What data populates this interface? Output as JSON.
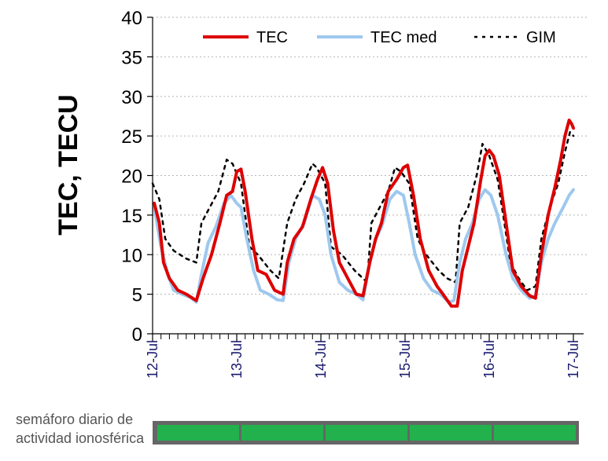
{
  "colors": {
    "tec": "#dd0000",
    "tec_med": "#9ec8ee",
    "gim": "#000000",
    "semaforo_green": "#22b14c",
    "semaforo_frame": "#666666"
  },
  "semaforo": {
    "label_line1": "semáforo diario de",
    "label_line2": "actividad ionosférica",
    "days": [
      {
        "date": "12-Jul",
        "status": "green"
      },
      {
        "date": "13-Jul",
        "status": "green"
      },
      {
        "date": "14-Jul",
        "status": "green"
      },
      {
        "date": "15-Jul",
        "status": "green"
      },
      {
        "date": "16-Jul",
        "status": "green"
      }
    ]
  },
  "chart_data": {
    "type": "line",
    "title": "",
    "xlabel": "",
    "ylabel": "TEC, TECU",
    "ylim": [
      0,
      40
    ],
    "yticks": [
      0,
      5,
      10,
      15,
      20,
      25,
      30,
      35,
      40
    ],
    "x_unit": "days since 12-Jul 00:00 UT",
    "xlim": [
      0,
      5
    ],
    "xticks": [
      {
        "x": 0,
        "label": "12-Jul"
      },
      {
        "x": 1,
        "label": "13-Jul"
      },
      {
        "x": 2,
        "label": "14-Jul"
      },
      {
        "x": 3,
        "label": "15-Jul"
      },
      {
        "x": 4,
        "label": "16-Jul"
      },
      {
        "x": 5,
        "label": "17-Jul"
      }
    ],
    "grid": "horizontal dashed",
    "legend_position": "top",
    "series": [
      {
        "name": "TEC",
        "style": "solid",
        "points": [
          [
            0.02,
            16.5
          ],
          [
            0.08,
            14.0
          ],
          [
            0.13,
            9.0
          ],
          [
            0.2,
            7.0
          ],
          [
            0.3,
            5.5
          ],
          [
            0.4,
            5.0
          ],
          [
            0.52,
            4.2
          ],
          [
            0.6,
            7.0
          ],
          [
            0.7,
            10.0
          ],
          [
            0.8,
            14.0
          ],
          [
            0.88,
            17.5
          ],
          [
            0.95,
            18.0
          ],
          [
            1.0,
            20.5
          ],
          [
            1.05,
            20.8
          ],
          [
            1.1,
            18.0
          ],
          [
            1.18,
            12.0
          ],
          [
            1.25,
            8.0
          ],
          [
            1.35,
            7.5
          ],
          [
            1.45,
            5.5
          ],
          [
            1.55,
            5.0
          ],
          [
            1.6,
            9.0
          ],
          [
            1.68,
            12.0
          ],
          [
            1.78,
            13.5
          ],
          [
            1.88,
            17.0
          ],
          [
            1.96,
            19.5
          ],
          [
            2.02,
            21.0
          ],
          [
            2.08,
            19.0
          ],
          [
            2.15,
            13.0
          ],
          [
            2.22,
            9.0
          ],
          [
            2.32,
            7.0
          ],
          [
            2.42,
            5.0
          ],
          [
            2.5,
            4.8
          ],
          [
            2.58,
            9.0
          ],
          [
            2.65,
            12.0
          ],
          [
            2.72,
            14.0
          ],
          [
            2.8,
            18.0
          ],
          [
            2.9,
            19.5
          ],
          [
            2.98,
            21.0
          ],
          [
            3.03,
            21.3
          ],
          [
            3.1,
            17.5
          ],
          [
            3.18,
            12.0
          ],
          [
            3.28,
            8.0
          ],
          [
            3.38,
            6.0
          ],
          [
            3.45,
            5.0
          ],
          [
            3.55,
            3.5
          ],
          [
            3.62,
            3.5
          ],
          [
            3.68,
            8.0
          ],
          [
            3.75,
            11.0
          ],
          [
            3.82,
            14.0
          ],
          [
            3.9,
            19.5
          ],
          [
            3.95,
            22.5
          ],
          [
            4.0,
            23.2
          ],
          [
            4.05,
            22.5
          ],
          [
            4.12,
            20.0
          ],
          [
            4.2,
            14.0
          ],
          [
            4.28,
            8.0
          ],
          [
            4.38,
            6.0
          ],
          [
            4.48,
            4.8
          ],
          [
            4.55,
            4.5
          ],
          [
            4.62,
            10.0
          ],
          [
            4.7,
            15.0
          ],
          [
            4.78,
            18.5
          ],
          [
            4.85,
            22.0
          ],
          [
            4.9,
            25.0
          ],
          [
            4.95,
            27.0
          ],
          [
            4.98,
            26.5
          ],
          [
            5.0,
            26.0
          ]
        ]
      },
      {
        "name": "TEC med",
        "style": "solid",
        "points": [
          [
            0.02,
            16.0
          ],
          [
            0.1,
            11.0
          ],
          [
            0.18,
            7.5
          ],
          [
            0.25,
            5.5
          ],
          [
            0.35,
            5.0
          ],
          [
            0.45,
            4.6
          ],
          [
            0.52,
            4.0
          ],
          [
            0.58,
            7.5
          ],
          [
            0.66,
            11.5
          ],
          [
            0.75,
            13.5
          ],
          [
            0.85,
            16.5
          ],
          [
            0.93,
            17.5
          ],
          [
            1.0,
            16.5
          ],
          [
            1.05,
            16.0
          ],
          [
            1.12,
            12.0
          ],
          [
            1.2,
            8.0
          ],
          [
            1.28,
            5.5
          ],
          [
            1.38,
            5.0
          ],
          [
            1.48,
            4.3
          ],
          [
            1.55,
            4.2
          ],
          [
            1.62,
            9.0
          ],
          [
            1.7,
            12.0
          ],
          [
            1.8,
            14.0
          ],
          [
            1.9,
            17.5
          ],
          [
            1.98,
            17.0
          ],
          [
            2.05,
            15.0
          ],
          [
            2.12,
            10.0
          ],
          [
            2.22,
            6.5
          ],
          [
            2.32,
            5.5
          ],
          [
            2.42,
            5.0
          ],
          [
            2.5,
            4.3
          ],
          [
            2.58,
            9.0
          ],
          [
            2.65,
            12.0
          ],
          [
            2.72,
            13.5
          ],
          [
            2.82,
            17.0
          ],
          [
            2.9,
            18.0
          ],
          [
            2.98,
            17.5
          ],
          [
            3.05,
            14.0
          ],
          [
            3.12,
            10.0
          ],
          [
            3.22,
            7.0
          ],
          [
            3.32,
            5.5
          ],
          [
            3.42,
            5.0
          ],
          [
            3.52,
            4.0
          ],
          [
            3.58,
            4.2
          ],
          [
            3.65,
            9.0
          ],
          [
            3.72,
            12.0
          ],
          [
            3.8,
            14.0
          ],
          [
            3.88,
            17.0
          ],
          [
            3.95,
            18.2
          ],
          [
            4.02,
            17.5
          ],
          [
            4.1,
            15.0
          ],
          [
            4.2,
            10.0
          ],
          [
            4.28,
            7.0
          ],
          [
            4.38,
            5.5
          ],
          [
            4.48,
            4.5
          ],
          [
            4.55,
            4.8
          ],
          [
            4.62,
            9.0
          ],
          [
            4.7,
            12.0
          ],
          [
            4.78,
            14.0
          ],
          [
            4.88,
            16.0
          ],
          [
            4.95,
            17.5
          ],
          [
            5.0,
            18.2
          ]
        ]
      },
      {
        "name": "GIM",
        "style": "dotted",
        "points": [
          [
            0.0,
            19.0
          ],
          [
            0.08,
            17.0
          ],
          [
            0.15,
            12.0
          ],
          [
            0.25,
            10.5
          ],
          [
            0.4,
            9.5
          ],
          [
            0.52,
            9.0
          ],
          [
            0.58,
            14.0
          ],
          [
            0.68,
            16.0
          ],
          [
            0.78,
            18.0
          ],
          [
            0.88,
            22.0
          ],
          [
            0.95,
            21.5
          ],
          [
            1.05,
            19.0
          ],
          [
            1.15,
            11.0
          ],
          [
            1.25,
            10.0
          ],
          [
            1.4,
            8.0
          ],
          [
            1.5,
            7.0
          ],
          [
            1.6,
            14.0
          ],
          [
            1.7,
            17.0
          ],
          [
            1.8,
            19.0
          ],
          [
            1.9,
            21.5
          ],
          [
            1.95,
            21.0
          ],
          [
            2.05,
            19.0
          ],
          [
            2.12,
            11.0
          ],
          [
            2.25,
            10.0
          ],
          [
            2.4,
            8.0
          ],
          [
            2.55,
            6.5
          ],
          [
            2.6,
            14.0
          ],
          [
            2.7,
            16.0
          ],
          [
            2.8,
            18.0
          ],
          [
            2.88,
            21.0
          ],
          [
            2.95,
            20.5
          ],
          [
            3.05,
            19.0
          ],
          [
            3.15,
            12.0
          ],
          [
            3.25,
            10.0
          ],
          [
            3.4,
            8.0
          ],
          [
            3.5,
            7.0
          ],
          [
            3.6,
            6.5
          ],
          [
            3.65,
            14.0
          ],
          [
            3.75,
            16.0
          ],
          [
            3.85,
            20.0
          ],
          [
            3.92,
            24.0
          ],
          [
            4.0,
            22.5
          ],
          [
            4.1,
            19.5
          ],
          [
            4.18,
            14.0
          ],
          [
            4.25,
            9.0
          ],
          [
            4.35,
            7.0
          ],
          [
            4.45,
            5.5
          ],
          [
            4.55,
            6.0
          ],
          [
            4.62,
            12.0
          ],
          [
            4.72,
            16.0
          ],
          [
            4.82,
            19.0
          ],
          [
            4.9,
            23.0
          ],
          [
            4.96,
            25.5
          ],
          [
            5.0,
            25.0
          ]
        ]
      }
    ]
  }
}
